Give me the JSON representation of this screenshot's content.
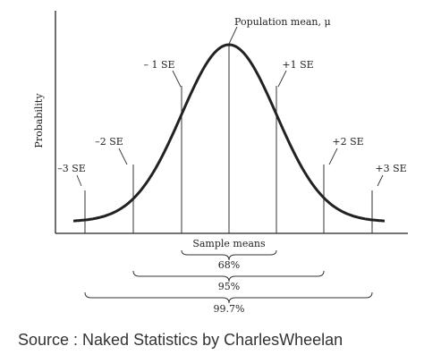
{
  "figure": {
    "population_mean_label": "Population mean, μ",
    "y_axis_label": "Probability",
    "x_axis_label": "Sample means",
    "se_labels": {
      "minus3": "–3 SE",
      "minus2": "–2 SE",
      "minus1": "– 1 SE",
      "plus1": "+1 SE",
      "plus2": "+2 SE",
      "plus3": "+3 SE"
    },
    "intervals": {
      "one_se": "68%",
      "two_se": "95%",
      "three_se": "99.7%"
    }
  },
  "source": "Source : Naked Statistics by CharlesWheelan",
  "colors": {
    "ink": "#222222",
    "background": "#ffffff"
  }
}
